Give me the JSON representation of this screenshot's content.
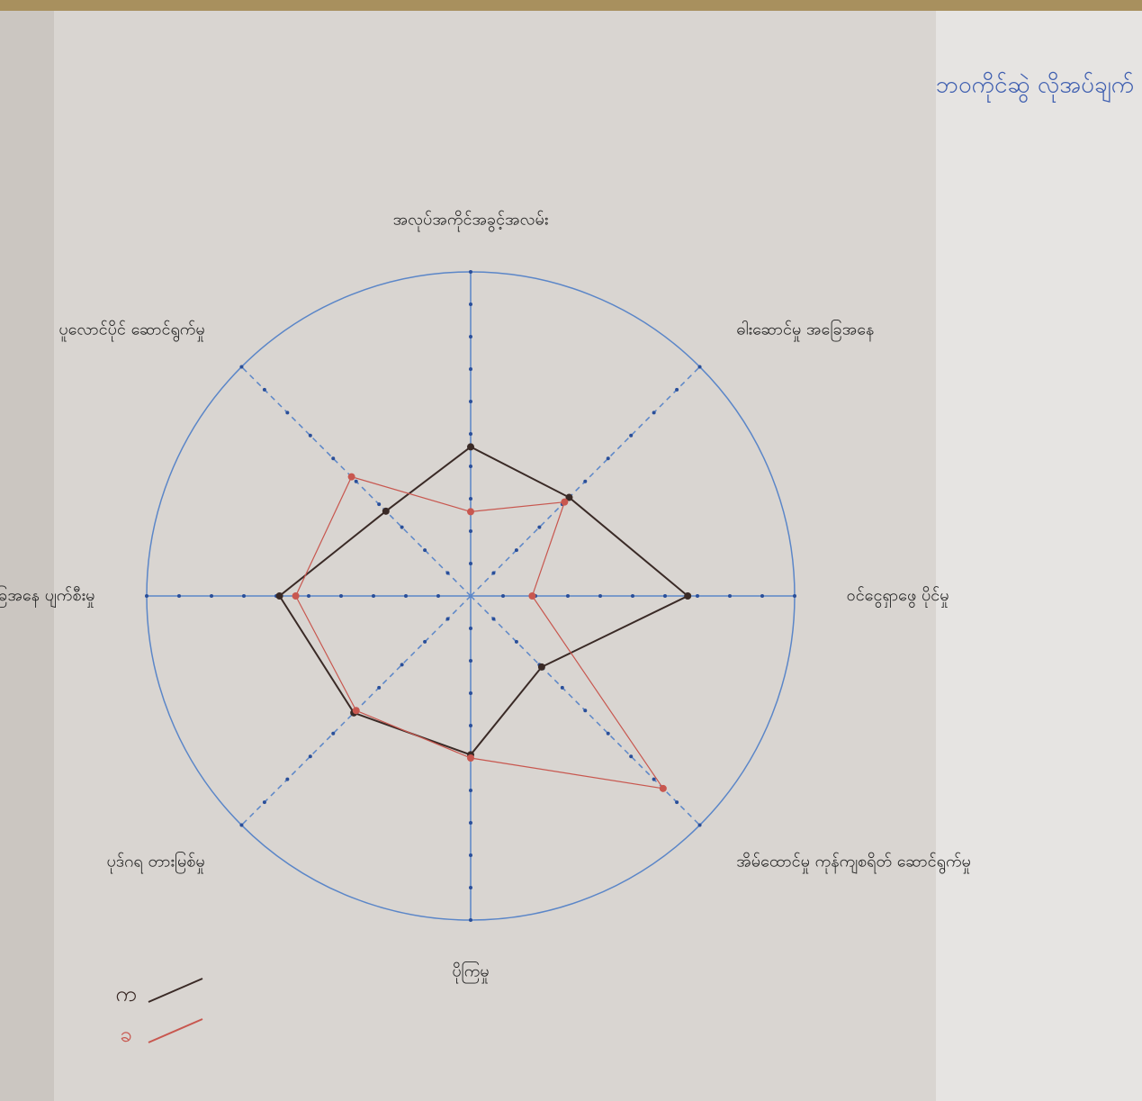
{
  "chart_data": {
    "type": "radar",
    "corner_note": "ဘဝကိုင်ဆွဲ လိုအပ်ချက်",
    "categories": [
      "အလုပ်အကိုင်အခွင့်အလမ်း",
      "ဓါးဆောင်မှု အခြေအနေ",
      "ဝင်ငွေရှာဖွေ ပိုင်မှု",
      "အိမ်ထောင်မှု ကုန်ကျစရိတ် ဆောင်ရွက်မှု",
      "ပိုကြမှု",
      "ပုဒ်ဂရ တားမြစ်မှု",
      "ထုတ်ကုန် ကုန်ကျ အခြေအနေ ပျက်စီးမှု",
      "ပူလောင်ပိုင် ဆောင်ရွက်မှု"
    ],
    "series": [
      {
        "name": "က",
        "color": "#3a2a26",
        "values": [
          4.6,
          4.3,
          6.7,
          3.1,
          4.9,
          5.1,
          5.9,
          3.7
        ]
      },
      {
        "name": "ခ",
        "color": "#c8574f",
        "values": [
          2.6,
          4.1,
          1.9,
          8.4,
          5.0,
          5.0,
          5.4,
          5.2
        ]
      }
    ],
    "rlim": [
      0,
      10
    ],
    "rticks": [
      1,
      2,
      3,
      4,
      5,
      6,
      7,
      8,
      9,
      10
    ],
    "axis_color": "#5b86c8"
  }
}
